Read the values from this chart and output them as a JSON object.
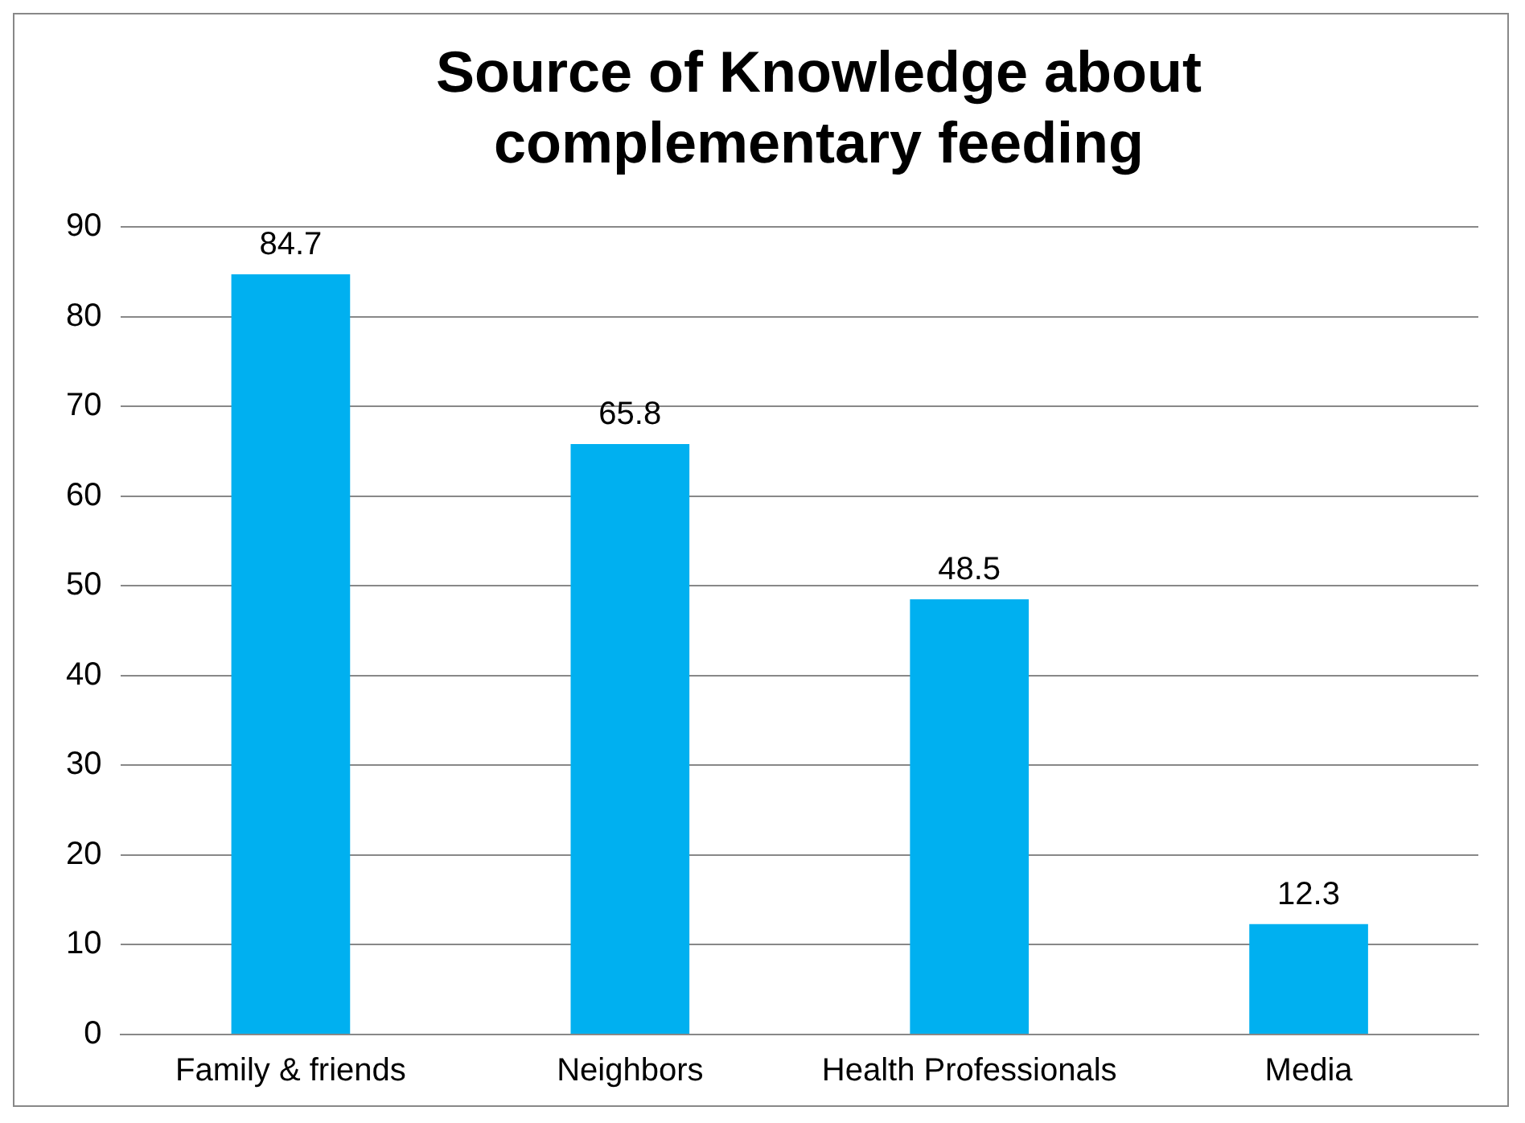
{
  "chart_data": {
    "type": "bar",
    "title": "Source of Knowledge about complementary feeding",
    "categories": [
      "Family & friends",
      "Neighbors",
      "Health Professionals",
      "Media"
    ],
    "values": [
      84.7,
      65.8,
      48.5,
      12.3
    ],
    "color": "#00b0f0",
    "ylim": [
      0,
      90
    ],
    "yticks": [
      0,
      10,
      20,
      30,
      40,
      50,
      60,
      70,
      80,
      90
    ],
    "grid": "y",
    "data_labels": true,
    "legend": false
  }
}
